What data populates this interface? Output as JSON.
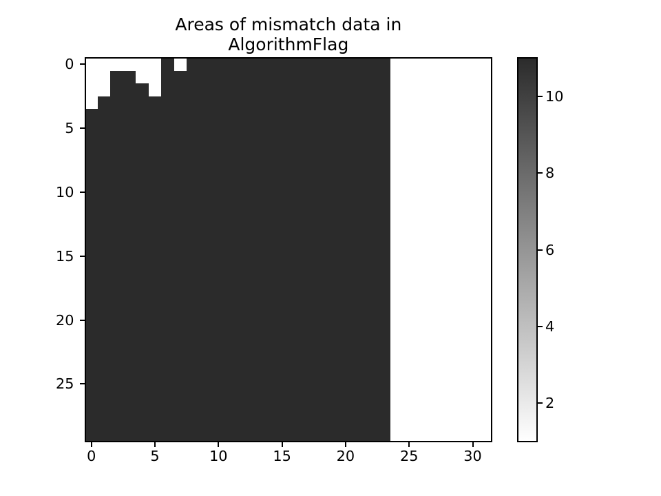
{
  "chart_data": {
    "type": "heatmap",
    "title_line1": "Areas of mismatch data in",
    "title_line2": "AlgorithmFlag",
    "n_rows": 30,
    "n_cols": 32,
    "x_ticks": [
      0,
      5,
      10,
      15,
      20,
      25,
      30
    ],
    "y_ticks": [
      0,
      5,
      10,
      15,
      20,
      25
    ],
    "x_range": [
      -0.5,
      31.5
    ],
    "y_range": [
      -0.5,
      29.5
    ],
    "values": {
      "dark": 11,
      "light": 1
    },
    "colors": {
      "dark": "#2b2b2b",
      "light": "#ffffff",
      "axis": "#000000"
    },
    "colorbar": {
      "ticks": [
        2,
        4,
        6,
        8,
        10
      ],
      "vmin": 1,
      "vmax": 11
    },
    "dark_region": {
      "col_start": 0,
      "col_end": 23,
      "row_start": 0,
      "row_end": 29
    },
    "light_cells": {
      "0": [
        0,
        1,
        2,
        3,
        4,
        5,
        7
      ],
      "1": [
        0,
        1,
        4,
        5
      ],
      "2": [
        0,
        1,
        5
      ],
      "3": [
        0
      ]
    }
  }
}
